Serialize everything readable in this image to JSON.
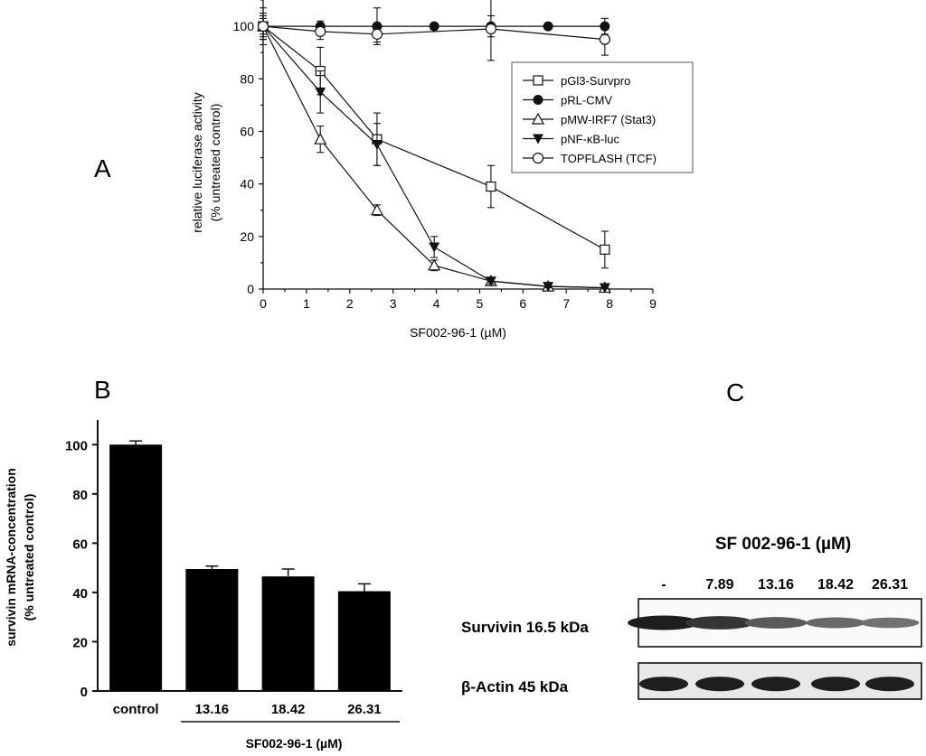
{
  "panels": {
    "a": "A",
    "b": "B",
    "c": "C"
  },
  "chart_data": [
    {
      "type": "line",
      "xlabel": "SF002-96-1 (µM)",
      "ylabel_line1": "relative luciferase activity",
      "ylabel_line2": "(% untreated control)",
      "xlim": [
        0,
        9
      ],
      "ylim": [
        0,
        110
      ],
      "xticks": [
        "0",
        "1",
        "2",
        "3",
        "4",
        "5",
        "6",
        "7",
        "8",
        "9"
      ],
      "yticks": [
        "0",
        "20",
        "40",
        "60",
        "80",
        "100"
      ],
      "legend_position": "right",
      "series": [
        {
          "name": "pGl3-Survpro",
          "marker": "open-square",
          "x": [
            0,
            1.32,
            2.63,
            5.26,
            7.89
          ],
          "y": [
            100,
            83,
            57,
            39,
            15
          ],
          "err": [
            5,
            9,
            10,
            8,
            7
          ]
        },
        {
          "name": "pRL-CMV",
          "marker": "filled-circle",
          "x": [
            0,
            1.32,
            2.63,
            3.95,
            5.26,
            6.58,
            7.89
          ],
          "y": [
            100,
            100,
            100,
            100,
            100,
            100,
            100
          ],
          "err": [
            3,
            2,
            7,
            1,
            4,
            1,
            3
          ]
        },
        {
          "name": "pMW-IRF7 (Stat3)",
          "marker": "open-triangle",
          "x": [
            0,
            1.32,
            2.63,
            3.95,
            5.26,
            6.58,
            7.89
          ],
          "y": [
            100,
            57,
            30,
            9,
            3,
            1,
            0.5
          ],
          "err": [
            4,
            5,
            2,
            2,
            1,
            0.5,
            0.3
          ]
        },
        {
          "name": "pNF-κB-luc",
          "marker": "filled-triangle-down",
          "x": [
            0,
            1.32,
            2.63,
            3.95,
            5.26,
            6.58,
            7.89
          ],
          "y": [
            100,
            75,
            55,
            16,
            3,
            1,
            0.5
          ],
          "err": [
            5,
            8,
            8,
            4,
            1,
            0.5,
            0.3
          ]
        },
        {
          "name": "TOPFLASH (TCF)",
          "marker": "open-circle",
          "x": [
            0,
            1.32,
            2.63,
            5.26,
            7.89
          ],
          "y": [
            100,
            98,
            97,
            99,
            95
          ],
          "err": [
            7,
            3,
            3,
            12,
            6
          ]
        }
      ]
    },
    {
      "type": "bar",
      "categories": [
        "control",
        "13.16",
        "18.42",
        "26.31"
      ],
      "values": [
        100,
        49.5,
        46.5,
        40.5
      ],
      "errors": [
        1.5,
        1.2,
        3,
        3
      ],
      "xlabel": "SF002-96-1 (µM)",
      "ylabel_line1": "survivin mRNA-concentration",
      "ylabel_line2": "(% untreated control)",
      "ylim": [
        0,
        110
      ],
      "yticks": [
        "0",
        "20",
        "40",
        "60",
        "80",
        "100"
      ],
      "color": "#000000"
    }
  ],
  "western_blot": {
    "title": "SF 002-96-1 (µM)",
    "lanes": [
      "-",
      "7.89",
      "13.16",
      "18.42",
      "26.31"
    ],
    "rows": [
      {
        "label": "Survivin 16.5 kDa",
        "intensity": [
          1.0,
          0.85,
          0.6,
          0.5,
          0.45
        ]
      },
      {
        "label": "β-Actin 45 kDa",
        "intensity": [
          1.0,
          1.0,
          1.0,
          1.0,
          1.0
        ]
      }
    ]
  }
}
